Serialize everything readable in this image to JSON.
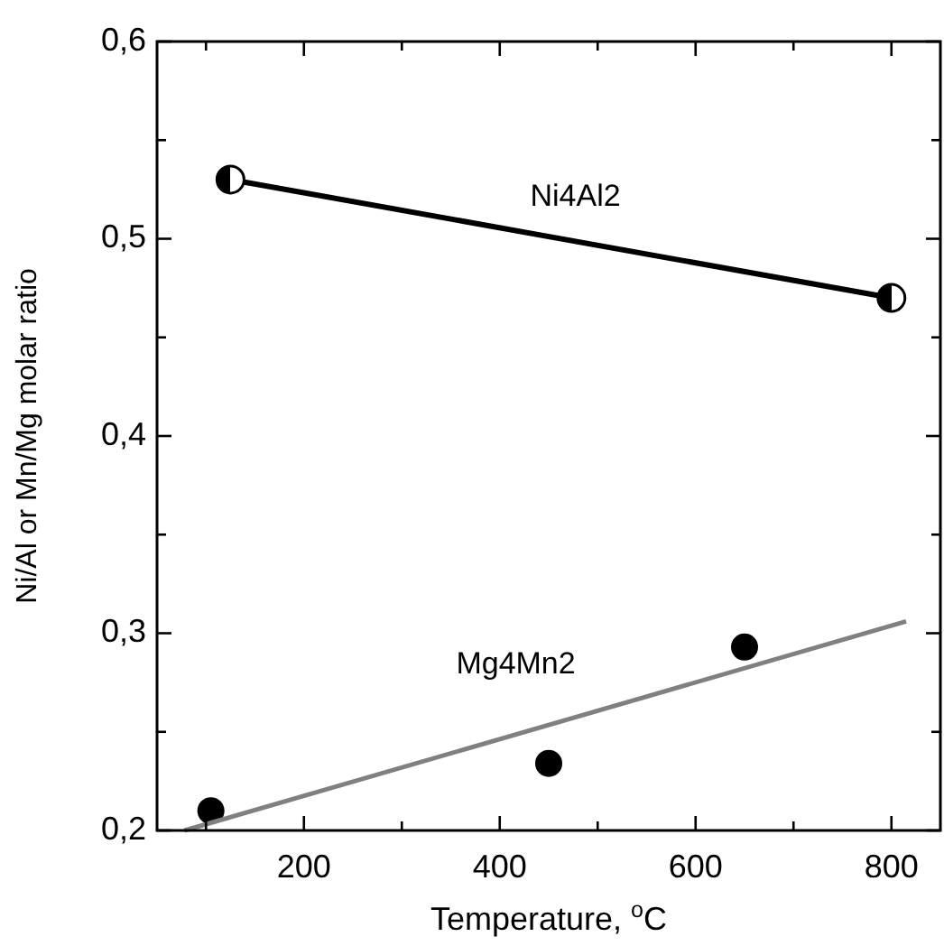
{
  "chart_data": {
    "type": "scatter",
    "xlabel": "Temperature, $^{o}$C",
    "ylabel": "Ni/Al or Mn/Mg molar ratio",
    "xlim": [
      50,
      850
    ],
    "xticks": [
      {
        "value": 100,
        "label": null
      },
      200,
      {
        "value": 300,
        "label": null
      },
      400,
      {
        "value": 500,
        "label": null
      },
      600,
      {
        "value": 700,
        "label": null
      },
      800
    ],
    "ylim": [
      0.2,
      0.6
    ],
    "yticks": [
      {
        "value": 0.2,
        "label": "0,2"
      },
      {
        "value": 0.25,
        "label": null
      },
      {
        "value": 0.3,
        "label": "0,3"
      },
      {
        "value": 0.35,
        "label": null
      },
      {
        "value": 0.4,
        "label": "0,4"
      },
      {
        "value": 0.45,
        "label": null
      },
      {
        "value": 0.5,
        "label": "0,5"
      },
      {
        "value": 0.55,
        "label": null
      },
      {
        "value": 0.6,
        "label": "0,6"
      }
    ],
    "grid": false,
    "marker": "circle",
    "series": [
      {
        "name": "Ni4Al2",
        "type": "line",
        "color": "#000000",
        "x": [
          125,
          800
        ],
        "values": [
          0.53,
          0.47
        ]
      },
      {
        "name": "Mg4Mn2",
        "color": "#000000",
        "x": [
          105,
          450,
          650
        ],
        "values": [
          0.21,
          0.234,
          0.293
        ]
      },
      {
        "type": "line",
        "marker": "none",
        "color": "#808080",
        "x": [
          78,
          815
        ],
        "values": [
          0.2,
          0.306
        ]
      }
    ]
  }
}
